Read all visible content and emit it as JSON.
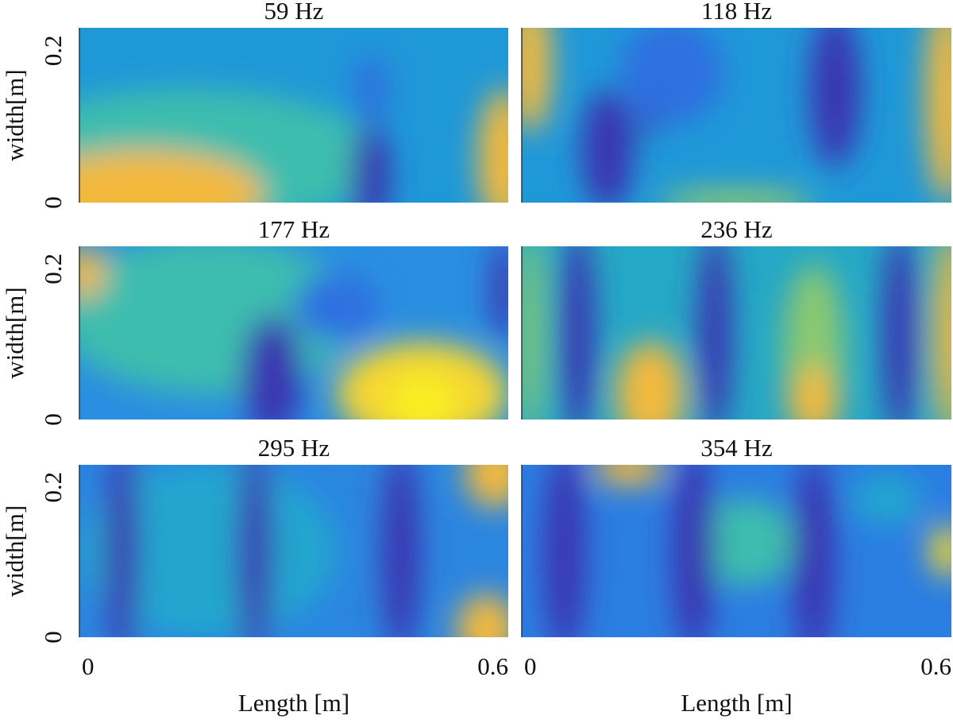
{
  "chart_data": [
    {
      "type": "heatmap",
      "title": "59 Hz",
      "xlim": [
        0,
        0.6
      ],
      "ylim": [
        0,
        0.23
      ],
      "yticks": [
        0,
        0.2
      ],
      "ylabel": "width[m]"
    },
    {
      "type": "heatmap",
      "title": "118 Hz",
      "xlim": [
        0,
        0.6
      ],
      "ylim": [
        0,
        0.23
      ]
    },
    {
      "type": "heatmap",
      "title": "177 Hz",
      "xlim": [
        0,
        0.6
      ],
      "ylim": [
        0,
        0.23
      ],
      "yticks": [
        0,
        0.2
      ],
      "ylabel": "width[m]"
    },
    {
      "type": "heatmap",
      "title": "236 Hz",
      "xlim": [
        0,
        0.6
      ],
      "ylim": [
        0,
        0.23
      ]
    },
    {
      "type": "heatmap",
      "title": "295 Hz",
      "xlim": [
        0,
        0.6
      ],
      "ylim": [
        0,
        0.23
      ],
      "yticks": [
        0,
        0.2
      ],
      "ylabel": "width[m]",
      "xticks": [
        0,
        0.6
      ],
      "xlabel": "Length [m]"
    },
    {
      "type": "heatmap",
      "title": "354 Hz",
      "xlim": [
        0,
        0.6
      ],
      "ylim": [
        0,
        0.23
      ],
      "xticks": [
        0,
        0.6
      ],
      "xlabel": "Length [m]"
    }
  ]
}
